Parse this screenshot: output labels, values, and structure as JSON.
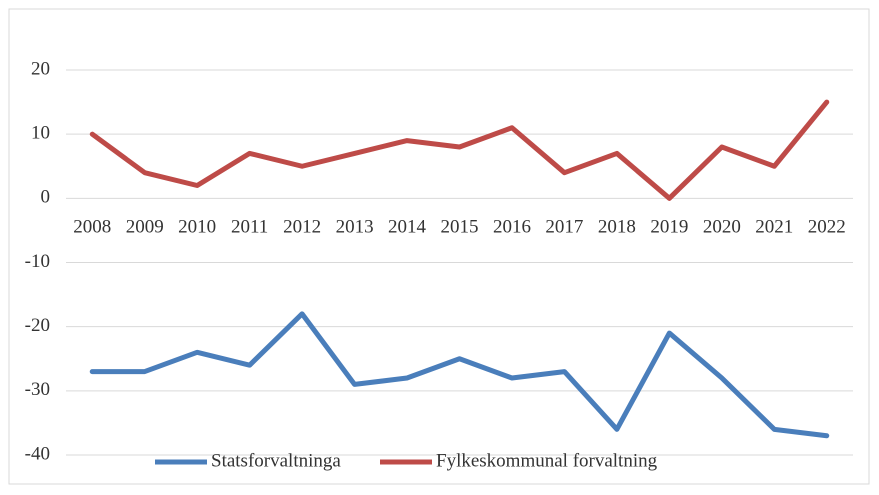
{
  "chart_data": {
    "type": "line",
    "categories": [
      "2008",
      "2009",
      "2010",
      "2011",
      "2012",
      "2013",
      "2014",
      "2015",
      "2016",
      "2017",
      "2018",
      "2019",
      "2020",
      "2021",
      "2022"
    ],
    "series": [
      {
        "name": "Statsforvaltninga",
        "color": "#4a7ebb",
        "values": [
          -27,
          -27,
          -24,
          -26,
          -18,
          -29,
          -28,
          -25,
          -28,
          -27,
          -36,
          -21,
          -28,
          -36,
          -37
        ]
      },
      {
        "name": "Fylkeskommunal forvaltning",
        "color": "#be4b48",
        "values": [
          10,
          4,
          2,
          7,
          5,
          7,
          9,
          8,
          11,
          4,
          7,
          0,
          8,
          5,
          15
        ]
      }
    ],
    "ylim": [
      -40,
      20
    ],
    "yticks": [
      -40,
      -30,
      -20,
      -10,
      0,
      10,
      20
    ],
    "grid": true,
    "legend": "bottom"
  }
}
